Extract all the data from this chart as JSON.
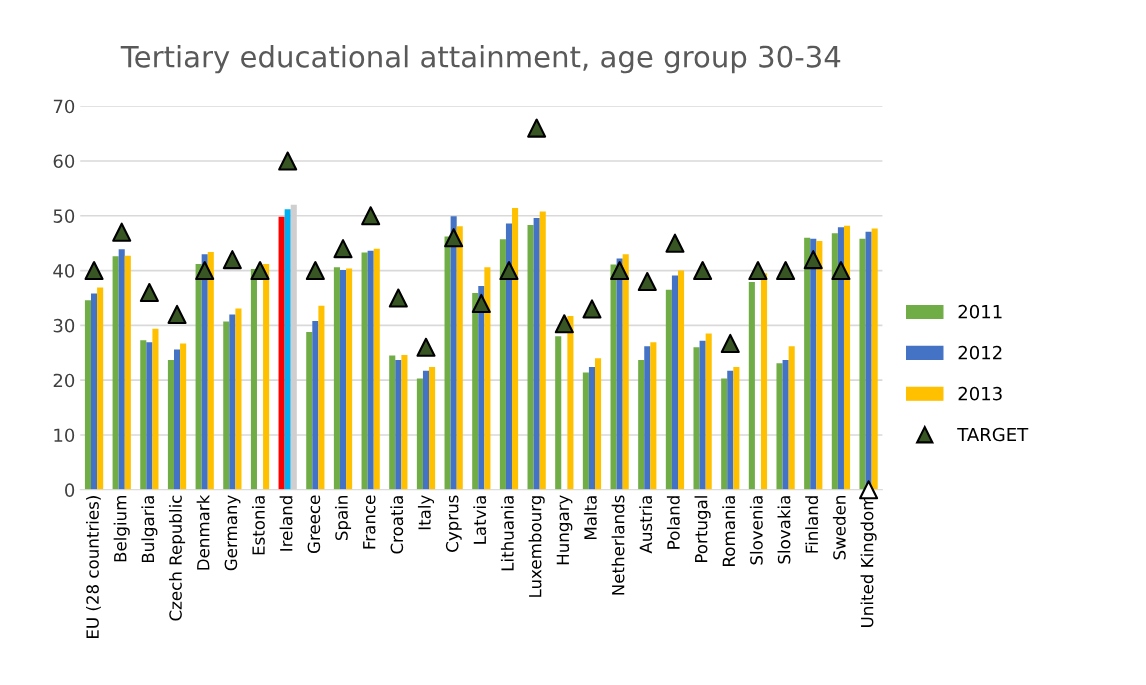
{
  "chart_data": {
    "type": "bar",
    "title": "Tertiary educational attainment, age group 30-34",
    "categories": [
      "EU (28 countries)",
      "Belgium",
      "Bulgaria",
      "Czech Republic",
      "Denmark",
      "Germany",
      "Estonia",
      "Ireland",
      "Greece",
      "Spain",
      "France",
      "Croatia",
      "Italy",
      "Cyprus",
      "Latvia",
      "Lithuania",
      "Luxembourg",
      "Hungary",
      "Malta",
      "Netherlands",
      "Austria",
      "Poland",
      "Portugal",
      "Romania",
      "Slovenia",
      "Slovakia",
      "Finland",
      "Sweden",
      "United Kingdom"
    ],
    "series": [
      {
        "name": "2011",
        "color": "#70ad47",
        "colors": [
          "#70ad47",
          "#70ad47",
          "#70ad47",
          "#70ad47",
          "#70ad47",
          "#70ad47",
          "#70ad47",
          "#ff0000",
          "#70ad47",
          "#70ad47",
          "#70ad47",
          "#70ad47",
          "#70ad47",
          "#70ad47",
          "#70ad47",
          "#70ad47",
          "#70ad47",
          "#70ad47",
          "#70ad47",
          "#70ad47",
          "#70ad47",
          "#70ad47",
          "#70ad47",
          "#70ad47",
          "#70ad47",
          "#70ad47",
          "#70ad47",
          "#70ad47",
          "#70ad47"
        ],
        "values": [
          34.6,
          42.6,
          27.3,
          23.7,
          41.2,
          30.7,
          40.3,
          49.8,
          28.8,
          40.6,
          43.3,
          24.5,
          20.3,
          46.2,
          35.9,
          45.7,
          48.3,
          28.0,
          21.4,
          41.1,
          23.7,
          36.5,
          26.0,
          20.3,
          37.9,
          23.1,
          46.0,
          46.8,
          45.8
        ]
      },
      {
        "name": "2012",
        "color": "#4472c4",
        "colors": [
          "#4472c4",
          "#4472c4",
          "#4472c4",
          "#4472c4",
          "#4472c4",
          "#4472c4",
          "#4472c4",
          "#00b0f0",
          "#4472c4",
          "#4472c4",
          "#4472c4",
          "#4472c4",
          "#4472c4",
          "#4472c4",
          "#4472c4",
          "#4472c4",
          "#4472c4",
          "#4472c4",
          "#4472c4",
          "#4472c4",
          "#4472c4",
          "#4472c4",
          "#4472c4",
          "#4472c4",
          "#4472c4",
          "#4472c4",
          "#4472c4",
          "#4472c4",
          "#4472c4"
        ],
        "values": [
          35.8,
          43.9,
          26.9,
          25.6,
          43.0,
          32.0,
          null,
          51.2,
          30.8,
          40.1,
          43.6,
          23.7,
          21.7,
          49.9,
          37.2,
          48.6,
          49.6,
          null,
          22.4,
          42.2,
          26.2,
          39.1,
          27.2,
          21.7,
          null,
          23.7,
          45.8,
          47.9,
          47.1
        ]
      },
      {
        "name": "2013",
        "color": "#ffc000",
        "colors": [
          "#ffc000",
          "#ffc000",
          "#ffc000",
          "#ffc000",
          "#ffc000",
          "#ffc000",
          "#ffc000",
          "#d0cece",
          "#ffc000",
          "#ffc000",
          "#ffc000",
          "#ffc000",
          "#ffc000",
          "#ffc000",
          "#ffc000",
          "#ffc000",
          "#ffc000",
          "#ffc000",
          "#ffc000",
          "#ffc000",
          "#ffc000",
          "#ffc000",
          "#ffc000",
          "#ffc000",
          "#ffc000",
          "#ffc000",
          "#ffc000",
          "#ffc000",
          "#ffc000"
        ],
        "values": [
          36.9,
          42.7,
          29.4,
          26.7,
          43.4,
          33.1,
          41.2,
          52.0,
          33.6,
          40.4,
          44.0,
          24.6,
          22.4,
          48.1,
          40.6,
          51.4,
          50.8,
          31.7,
          24.0,
          43.0,
          26.9,
          40.0,
          28.5,
          22.4,
          39.5,
          26.2,
          45.4,
          48.2,
          47.7
        ]
      },
      {
        "name": "TARGET",
        "type": "scatter",
        "marker": "triangle",
        "color": "#375623",
        "colors": [
          "#375623",
          "#375623",
          "#375623",
          "#375623",
          "#375623",
          "#375623",
          "#375623",
          "#375623",
          "#375623",
          "#375623",
          "#375623",
          "#375623",
          "#375623",
          "#375623",
          "#375623",
          "#375623",
          "#375623",
          "#375623",
          "#375623",
          "#375623",
          "#375623",
          "#375623",
          "#375623",
          "#375623",
          "#375623",
          "#375623",
          "#375623",
          "#375623",
          "#ffffff"
        ],
        "values": [
          40,
          47,
          36,
          32,
          40,
          42,
          40,
          60,
          40,
          44,
          50,
          35,
          26,
          46,
          34,
          40,
          66,
          30.3,
          33,
          40,
          38,
          45,
          40,
          26.7,
          40,
          40,
          42,
          40,
          0
        ]
      }
    ],
    "ylim": [
      0,
      70
    ],
    "yticks": [
      0,
      10,
      20,
      30,
      40,
      50,
      60,
      70
    ],
    "grid": "y",
    "legend": "right"
  }
}
